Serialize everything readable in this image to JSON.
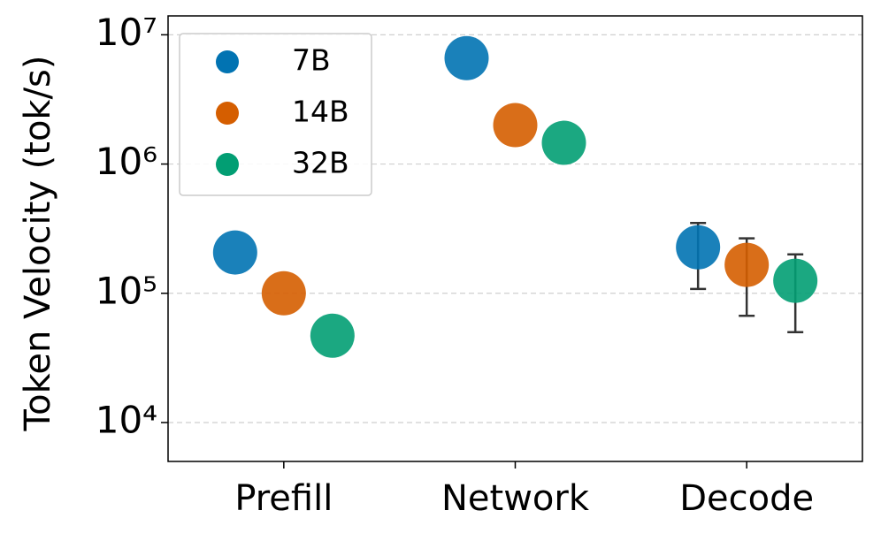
{
  "chart_data": {
    "type": "scatter",
    "ylabel": "Token Velocity (tok/s)",
    "categories": [
      "Prefill",
      "Network",
      "Decode"
    ],
    "series": [
      {
        "name": "7B",
        "color": "#0173b2",
        "values": [
          207000,
          6600000,
          227000
        ],
        "yerr_lower": [
          null,
          null,
          119000
        ],
        "yerr_upper": [
          null,
          null,
          123000
        ]
      },
      {
        "name": "14B",
        "color": "#d55e00",
        "values": [
          100000,
          2000000,
          166000
        ],
        "yerr_lower": [
          null,
          null,
          99000
        ],
        "yerr_upper": [
          null,
          null,
          100000
        ]
      },
      {
        "name": "32B",
        "color": "#029e73",
        "values": [
          47000,
          1460000,
          125000
        ],
        "yerr_lower": [
          null,
          null,
          75000
        ],
        "yerr_upper": [
          null,
          null,
          75000
        ]
      }
    ],
    "ylim": [
      5000,
      14000000
    ],
    "log_y": true,
    "yticks": [
      {
        "value": 10000,
        "label": "10⁴"
      },
      {
        "value": 100000,
        "label": "10⁵"
      },
      {
        "value": 1000000,
        "label": "10⁶"
      },
      {
        "value": 10000000,
        "label": "10⁷"
      }
    ],
    "grid": true,
    "legend": "upper left"
  }
}
